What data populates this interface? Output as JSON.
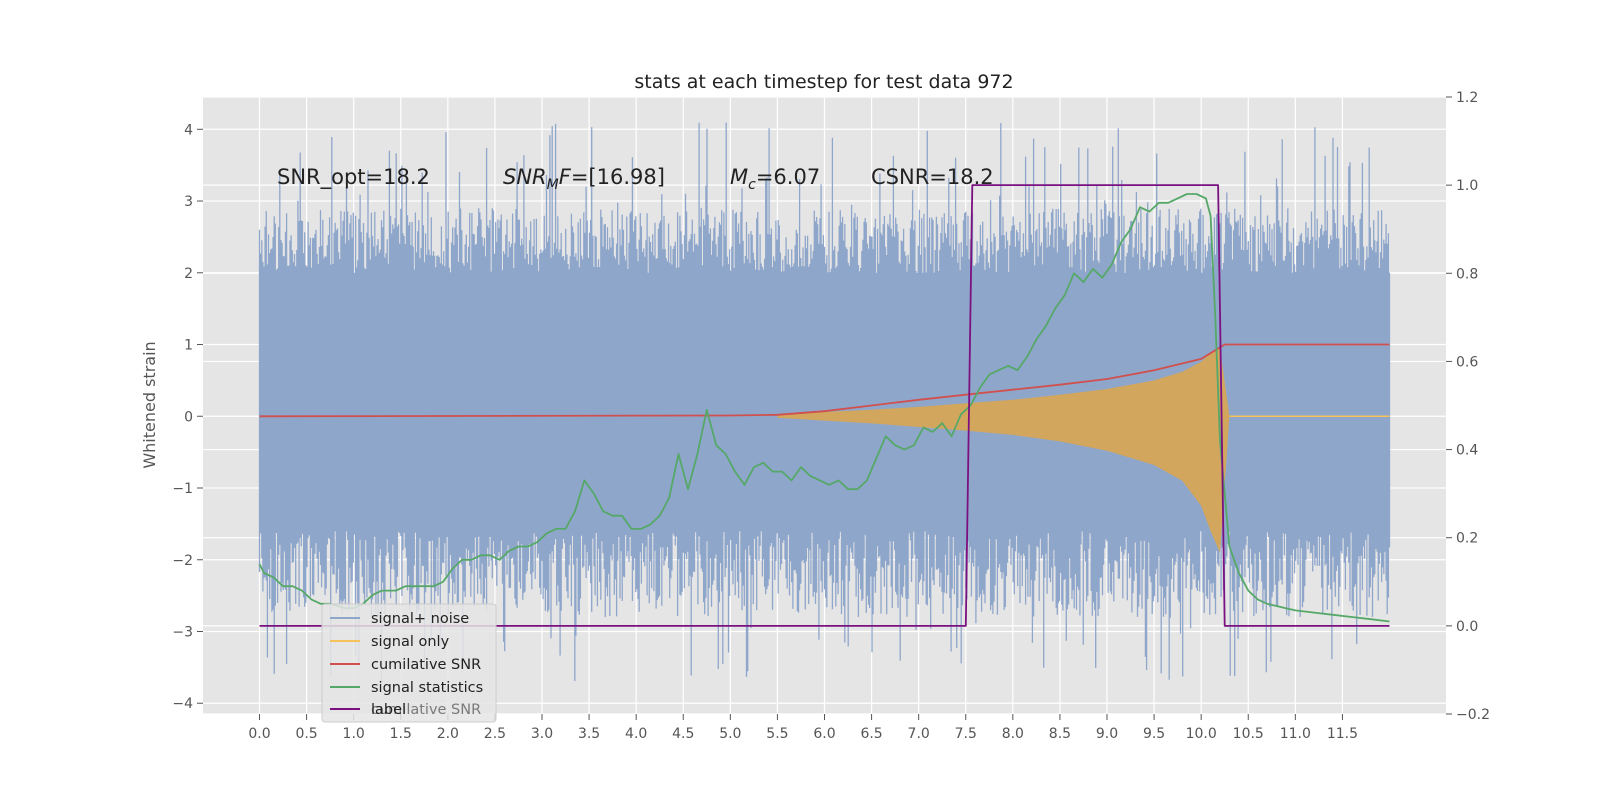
{
  "chart_data": {
    "type": "line",
    "title": "stats at each timestep for test data 972",
    "ylabel": "Whitened strain",
    "xlim": [
      -0.6,
      12.6
    ],
    "ylim": [
      -4.15,
      4.45
    ],
    "y2lim": [
      -0.2,
      1.2
    ],
    "x_ticks": [
      0.0,
      0.5,
      1.0,
      1.5,
      2.0,
      2.5,
      3.0,
      3.5,
      4.0,
      4.5,
      5.0,
      5.5,
      6.0,
      6.5,
      7.0,
      7.5,
      8.0,
      8.5,
      9.0,
      9.5,
      10.0,
      10.5,
      11.0,
      11.5
    ],
    "x_tick_labels": [
      "0.0",
      "0.5",
      "1.0",
      "1.5",
      "2.0",
      "2.5",
      "3.0",
      "3.5",
      "4.0",
      "4.5",
      "5.0",
      "5.5",
      "6.0",
      "6.5",
      "7.0",
      "7.5",
      "8.0",
      "8.5",
      "9.0",
      "9.5",
      "10.0",
      "10.5",
      "11.0",
      "11.5"
    ],
    "y_ticks": [
      4,
      3,
      2,
      1,
      0,
      -1,
      -2,
      -3,
      -4
    ],
    "y_tick_labels": [
      "4",
      "3",
      "2",
      "1",
      "0",
      "−1",
      "−2",
      "−3",
      "−4"
    ],
    "y2_ticks": [
      1.2,
      1.0,
      0.8,
      0.6,
      0.4,
      0.2,
      0.0,
      -0.2
    ],
    "y2_tick_labels": [
      "1.2",
      "1.0",
      "0.8",
      "0.6",
      "0.4",
      "0.2",
      "0.0",
      "−0.2"
    ],
    "grid": true,
    "legend_position": "lower-left",
    "annotations": [
      {
        "name": "annotation-snr-opt",
        "text": "SNR_opt=18.2",
        "x": 0.2,
        "y": 3.3
      },
      {
        "name": "annotation-snr-mf",
        "text": "SNR_MF=[16.98]",
        "x": 2.6,
        "y": 3.3
      },
      {
        "name": "annotation-mc",
        "text": "M_c=6.07",
        "x": 5.0,
        "y": 3.3
      },
      {
        "name": "annotation-csnr",
        "text": "CSNR=18.2",
        "x": 6.5,
        "y": 3.3
      }
    ],
    "series": [
      {
        "name": "signal+ noise",
        "axis": "left",
        "color": "#8fa6cb",
        "noise_band": {
          "x_range": [
            0.0,
            12.0
          ],
          "envelope": [
            -1.6,
            2.0
          ],
          "peak_envelope": [
            -3.7,
            4.1
          ]
        }
      },
      {
        "name": "signal only",
        "axis": "left",
        "color": "#f5c25b",
        "envelope": {
          "x": [
            5.5,
            6.0,
            6.5,
            7.0,
            7.5,
            8.0,
            8.5,
            9.0,
            9.5,
            9.8,
            10.0,
            10.1,
            10.2,
            10.3
          ],
          "upper": [
            0.02,
            0.06,
            0.09,
            0.13,
            0.18,
            0.23,
            0.3,
            0.38,
            0.5,
            0.62,
            0.76,
            0.88,
            0.95,
            0.0
          ],
          "lower": [
            -0.02,
            -0.06,
            -0.1,
            -0.15,
            -0.2,
            -0.26,
            -0.35,
            -0.48,
            -0.68,
            -0.9,
            -1.25,
            -1.6,
            -1.9,
            0.0
          ]
        }
      },
      {
        "name": "cumilative SNR",
        "axis": "left",
        "color": "#d0504e",
        "x": [
          0.0,
          5.0,
          5.5,
          6.0,
          6.5,
          7.0,
          7.5,
          8.0,
          8.5,
          9.0,
          9.5,
          10.0,
          10.25,
          12.0
        ],
        "y": [
          0.0,
          0.01,
          0.02,
          0.07,
          0.15,
          0.23,
          0.3,
          0.37,
          0.44,
          0.52,
          0.64,
          0.8,
          1.0,
          1.0
        ]
      },
      {
        "name": "signal statistics",
        "axis": "right",
        "color": "#55a868",
        "x": [
          0.0,
          0.05,
          0.15,
          0.25,
          0.35,
          0.45,
          0.55,
          0.65,
          0.75,
          0.9,
          1.0,
          1.1,
          1.2,
          1.3,
          1.45,
          1.55,
          1.65,
          1.75,
          1.85,
          1.95,
          2.05,
          2.15,
          2.25,
          2.35,
          2.45,
          2.55,
          2.65,
          2.75,
          2.85,
          2.95,
          3.05,
          3.15,
          3.25,
          3.35,
          3.45,
          3.55,
          3.65,
          3.75,
          3.85,
          3.95,
          4.05,
          4.15,
          4.25,
          4.35,
          4.45,
          4.55,
          4.65,
          4.75,
          4.85,
          4.95,
          5.05,
          5.15,
          5.25,
          5.35,
          5.45,
          5.55,
          5.65,
          5.75,
          5.85,
          5.95,
          6.05,
          6.15,
          6.25,
          6.35,
          6.45,
          6.55,
          6.65,
          6.75,
          6.85,
          6.95,
          7.05,
          7.15,
          7.25,
          7.35,
          7.45,
          7.55,
          7.65,
          7.75,
          7.85,
          7.95,
          8.05,
          8.15,
          8.25,
          8.35,
          8.45,
          8.55,
          8.65,
          8.75,
          8.85,
          8.95,
          9.05,
          9.15,
          9.25,
          9.35,
          9.45,
          9.55,
          9.65,
          9.75,
          9.85,
          9.95,
          10.05,
          10.1,
          10.15,
          10.2,
          10.25,
          10.3,
          10.4,
          10.5,
          10.6,
          10.7,
          10.8,
          10.9,
          11.0,
          11.2,
          11.4,
          11.6,
          11.8,
          12.0
        ],
        "y": [
          0.14,
          0.12,
          0.11,
          0.09,
          0.09,
          0.08,
          0.06,
          0.05,
          0.05,
          0.04,
          0.04,
          0.05,
          0.07,
          0.08,
          0.08,
          0.09,
          0.09,
          0.09,
          0.09,
          0.1,
          0.13,
          0.15,
          0.15,
          0.16,
          0.16,
          0.15,
          0.17,
          0.18,
          0.18,
          0.19,
          0.21,
          0.22,
          0.22,
          0.26,
          0.33,
          0.3,
          0.26,
          0.25,
          0.25,
          0.22,
          0.22,
          0.23,
          0.25,
          0.29,
          0.39,
          0.31,
          0.39,
          0.49,
          0.41,
          0.39,
          0.35,
          0.32,
          0.36,
          0.37,
          0.35,
          0.35,
          0.33,
          0.36,
          0.34,
          0.33,
          0.32,
          0.33,
          0.31,
          0.31,
          0.33,
          0.38,
          0.43,
          0.41,
          0.4,
          0.41,
          0.45,
          0.44,
          0.46,
          0.43,
          0.48,
          0.5,
          0.54,
          0.57,
          0.58,
          0.59,
          0.58,
          0.61,
          0.65,
          0.68,
          0.72,
          0.75,
          0.8,
          0.78,
          0.81,
          0.79,
          0.82,
          0.87,
          0.9,
          0.95,
          0.94,
          0.96,
          0.96,
          0.97,
          0.98,
          0.98,
          0.97,
          0.93,
          0.7,
          0.42,
          0.3,
          0.18,
          0.12,
          0.08,
          0.06,
          0.05,
          0.045,
          0.04,
          0.035,
          0.03,
          0.025,
          0.02,
          0.015,
          0.01
        ]
      },
      {
        "name": "label",
        "axis": "right",
        "color": "#7b1080",
        "x": [
          0.0,
          7.5,
          7.57,
          10.18,
          10.25,
          12.0
        ],
        "y": [
          0,
          0,
          1,
          1,
          0,
          0
        ]
      }
    ],
    "legend_hidden_entry": "cumilative SNR"
  }
}
